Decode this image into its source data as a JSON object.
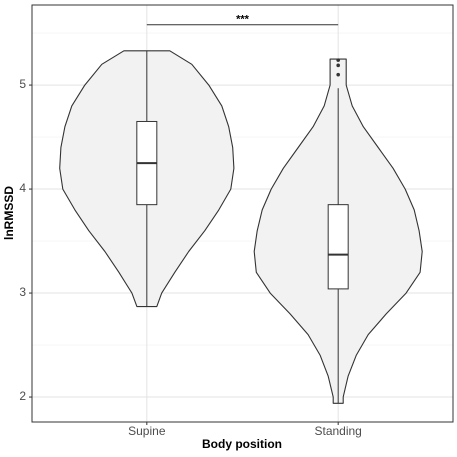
{
  "chart_data": {
    "type": "violin",
    "xlabel": "Body position",
    "ylabel": "lnRMSSD",
    "categories": [
      "Supine",
      "Standing"
    ],
    "ylim": [
      1.76,
      5.77
    ],
    "yticks": [
      2,
      3,
      4,
      5
    ],
    "y_minor_grid": [
      2.5,
      3.5,
      4.5,
      5.5
    ],
    "grid": true,
    "color": "#f2f2f2",
    "series": [
      {
        "density": {
          "y": [
            5.33,
            5.2,
            5.0,
            4.8,
            4.6,
            4.4,
            4.2,
            4.0,
            3.8,
            3.6,
            3.4,
            3.2,
            3.0,
            2.87
          ],
          "half_width": [
            0.12,
            0.235,
            0.324,
            0.392,
            0.428,
            0.449,
            0.455,
            0.439,
            0.376,
            0.303,
            0.219,
            0.146,
            0.078,
            0.052
          ]
        },
        "box": {
          "whisker_low": 2.87,
          "q1": 3.85,
          "median": 4.25,
          "q3": 4.65,
          "whisker_high": 5.33,
          "outliers": []
        }
      },
      {
        "density": {
          "y": [
            5.25,
            5.0,
            4.8,
            4.6,
            4.4,
            4.2,
            4.0,
            3.8,
            3.6,
            3.4,
            3.2,
            3.0,
            2.8,
            2.6,
            2.4,
            2.2,
            2.0,
            1.94
          ],
          "half_width": [
            0.042,
            0.042,
            0.073,
            0.131,
            0.209,
            0.287,
            0.35,
            0.397,
            0.423,
            0.439,
            0.428,
            0.355,
            0.251,
            0.157,
            0.094,
            0.052,
            0.026,
            0.026
          ]
        },
        "box": {
          "whisker_low": 1.94,
          "q1": 3.04,
          "median": 3.37,
          "q3": 3.85,
          "whisker_high": 4.97,
          "outliers": [
            5.24,
            5.19,
            5.1
          ]
        }
      }
    ],
    "annotation": {
      "text": "***",
      "y": 5.58
    }
  }
}
